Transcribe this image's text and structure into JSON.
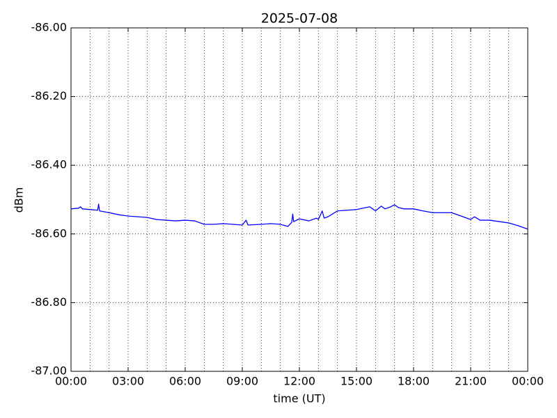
{
  "chart_data": {
    "type": "line",
    "title": "2025-07-08",
    "xlabel": "time (UT)",
    "ylabel": "dBm",
    "x": [
      0,
      0.4,
      0.5,
      0.6,
      1,
      1.4,
      1.45,
      1.5,
      2,
      2.5,
      3,
      3.5,
      4,
      4.5,
      5,
      5.5,
      6,
      6.5,
      7,
      7.5,
      8,
      8.5,
      9,
      9.2,
      9.3,
      10,
      10.5,
      11,
      11.4,
      11.6,
      11.65,
      11.7,
      12,
      12.5,
      12.9,
      13,
      13.2,
      13.3,
      13.5,
      14,
      14.5,
      15,
      15.5,
      15.7,
      16,
      16.3,
      16.5,
      16.8,
      17,
      17.2,
      17.5,
      18,
      18.5,
      19,
      19.5,
      20,
      20.5,
      21,
      21.2,
      21.5,
      22,
      22.5,
      23,
      23.5,
      24
    ],
    "values": [
      -86.527,
      -86.525,
      -86.521,
      -86.527,
      -86.529,
      -86.531,
      -86.513,
      -86.533,
      -86.538,
      -86.544,
      -86.548,
      -86.55,
      -86.552,
      -86.558,
      -86.56,
      -86.562,
      -86.56,
      -86.562,
      -86.572,
      -86.572,
      -86.57,
      -86.572,
      -86.574,
      -86.56,
      -86.574,
      -86.572,
      -86.57,
      -86.572,
      -86.578,
      -86.566,
      -86.542,
      -86.564,
      -86.556,
      -86.562,
      -86.554,
      -86.558,
      -86.533,
      -86.554,
      -86.55,
      -86.533,
      -86.531,
      -86.529,
      -86.523,
      -86.521,
      -86.533,
      -86.519,
      -86.527,
      -86.521,
      -86.515,
      -86.523,
      -86.527,
      -86.527,
      -86.533,
      -86.538,
      -86.538,
      -86.538,
      -86.548,
      -86.558,
      -86.55,
      -86.56,
      -86.56,
      -86.564,
      -86.568,
      -86.576,
      -86.586
    ],
    "color": "#0000ff",
    "xlim": [
      0,
      24
    ],
    "xticks": [
      {
        "value": 0,
        "label": "00:00"
      },
      {
        "value": 3,
        "label": "03:00"
      },
      {
        "value": 6,
        "label": "06:00"
      },
      {
        "value": 9,
        "label": "09:00"
      },
      {
        "value": 12,
        "label": "12:00"
      },
      {
        "value": 15,
        "label": "15:00"
      },
      {
        "value": 18,
        "label": "18:00"
      },
      {
        "value": 21,
        "label": "21:00"
      },
      {
        "value": 24,
        "label": "00:00"
      }
    ],
    "xminorticks": [
      1,
      2,
      4,
      5,
      7,
      8,
      10,
      11,
      13,
      14,
      16,
      17,
      19,
      20,
      22,
      23
    ],
    "ylim": [
      -87,
      -86
    ],
    "yticks": [
      {
        "value": -87,
        "label": "-87.00"
      },
      {
        "value": -86.8,
        "label": "-86.80"
      },
      {
        "value": -86.6,
        "label": "-86.60"
      },
      {
        "value": -86.4,
        "label": "-86.40"
      },
      {
        "value": -86.2,
        "label": "-86.20"
      },
      {
        "value": -86,
        "label": "-86.00"
      }
    ],
    "grid": true
  }
}
